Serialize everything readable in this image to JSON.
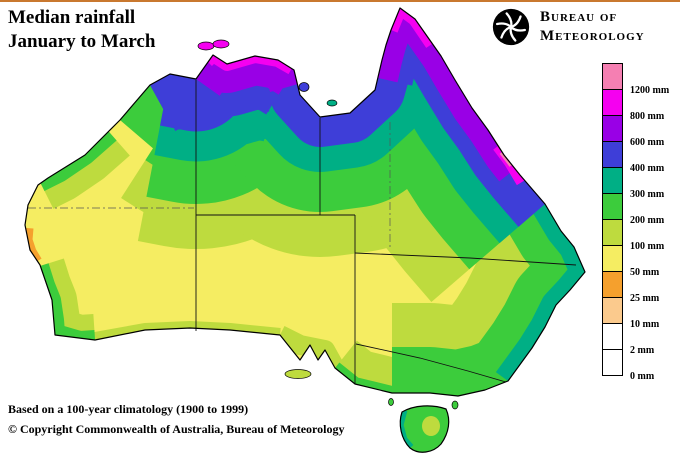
{
  "header": {
    "title_line1": "Median rainfall",
    "title_line2": "January to March",
    "org_line1": "Bureau of",
    "org_line2": "Meteorology"
  },
  "palette": {
    "pink": "#F57FB2",
    "magenta": "#F500F0",
    "purple": "#9900E6",
    "blue": "#3E3ED8",
    "teal": "#00AF85",
    "green": "#3CCC3C",
    "yellowgreen": "#BEDB3E",
    "yellow": "#F5ED62",
    "orange": "#F5A02D",
    "peach": "#FBCA8D",
    "white": "#FFFFFF"
  },
  "legend": {
    "items": [
      {
        "label": "1200 mm",
        "color": "pink"
      },
      {
        "label": "800 mm",
        "color": "magenta"
      },
      {
        "label": "600 mm",
        "color": "purple"
      },
      {
        "label": "400 mm",
        "color": "blue"
      },
      {
        "label": "300 mm",
        "color": "teal"
      },
      {
        "label": "200 mm",
        "color": "green"
      },
      {
        "label": "100 mm",
        "color": "yellowgreen"
      },
      {
        "label": "50 mm",
        "color": "yellow"
      },
      {
        "label": "25 mm",
        "color": "orange"
      },
      {
        "label": "10 mm",
        "color": "peach"
      },
      {
        "label": "2 mm",
        "color": "white"
      },
      {
        "label": "0 mm",
        "color": "white"
      }
    ]
  },
  "footer": {
    "climatology_note": "Based on a 100-year climatology (1900 to 1999)",
    "copyright": "© Copyright Commonwealth of Australia, Bureau of Meteorology"
  }
}
